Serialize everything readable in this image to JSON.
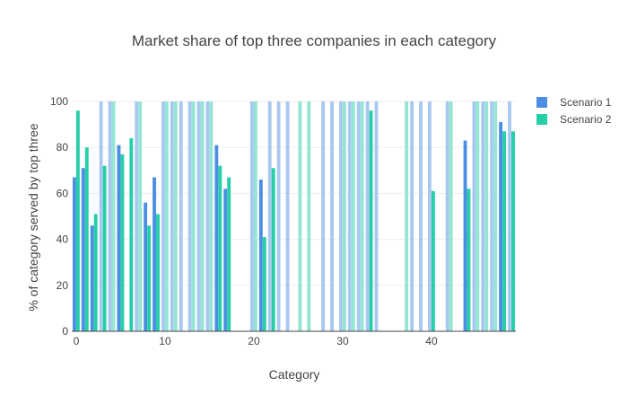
{
  "chart_data": {
    "type": "bar",
    "title": "Market share of top three companies in each category",
    "xlabel": "Category",
    "ylabel": "% of category served by top three",
    "xlim": [
      -0.5,
      49.5
    ],
    "ylim": [
      0,
      100
    ],
    "x_ticks": [
      0,
      10,
      20,
      30,
      40
    ],
    "y_ticks": [
      0,
      20,
      40,
      60,
      80,
      100
    ],
    "grid": "horizontal",
    "legend_position": "top-right",
    "x": [
      0,
      1,
      2,
      3,
      4,
      5,
      6,
      7,
      8,
      9,
      10,
      11,
      12,
      13,
      14,
      15,
      16,
      17,
      18,
      19,
      20,
      21,
      22,
      23,
      24,
      25,
      26,
      27,
      28,
      29,
      30,
      31,
      32,
      33,
      34,
      35,
      36,
      37,
      38,
      39,
      40,
      41,
      42,
      43,
      44,
      45,
      46,
      47,
      48,
      49
    ],
    "series": [
      {
        "name": "Scenario 1",
        "color": "#4c8ee3",
        "faded_color": "#a9c8ef",
        "values": [
          67,
          71,
          46,
          100,
          100,
          81,
          null,
          100,
          56,
          67,
          100,
          100,
          100,
          100,
          100,
          100,
          81,
          62,
          null,
          null,
          100,
          66,
          100,
          100,
          100,
          null,
          null,
          null,
          100,
          100,
          100,
          100,
          100,
          100,
          100,
          null,
          null,
          null,
          100,
          100,
          100,
          null,
          100,
          null,
          83,
          100,
          100,
          100,
          91,
          100
        ]
      },
      {
        "name": "Scenario 2",
        "color": "#26cfa8",
        "faded_color": "#94e6d3",
        "values": [
          96,
          80,
          51,
          72,
          100,
          77,
          84,
          100,
          46,
          51,
          100,
          100,
          null,
          100,
          100,
          100,
          72,
          67,
          null,
          null,
          100,
          41,
          71,
          null,
          null,
          100,
          100,
          null,
          null,
          null,
          100,
          100,
          100,
          96,
          null,
          null,
          null,
          100,
          null,
          null,
          61,
          null,
          100,
          null,
          62,
          100,
          100,
          100,
          87,
          87
        ]
      }
    ]
  }
}
